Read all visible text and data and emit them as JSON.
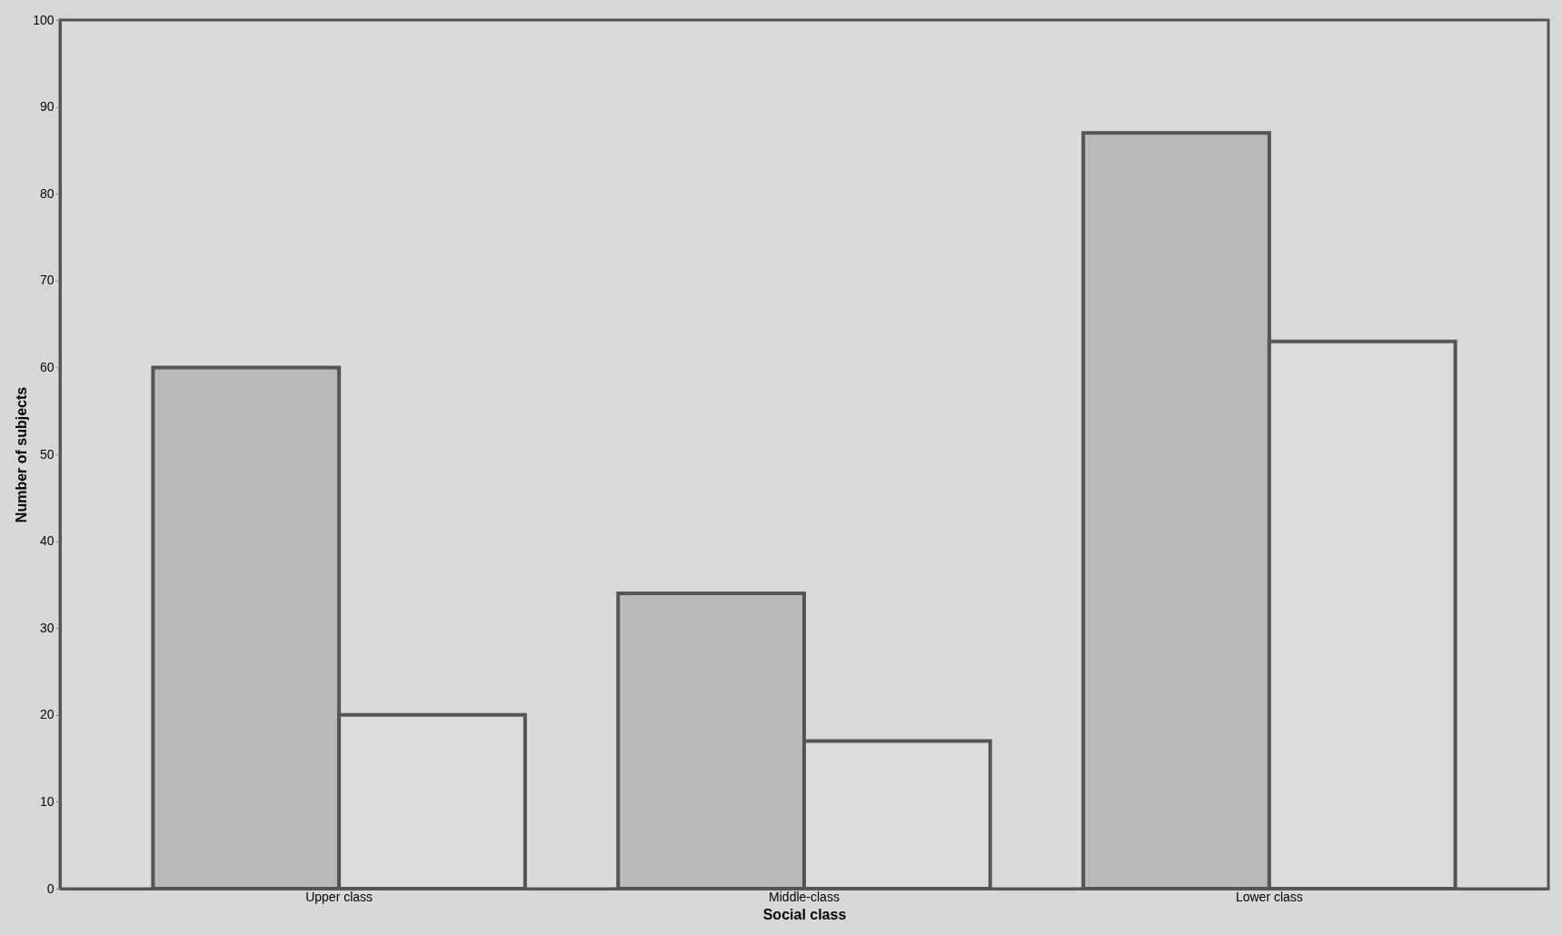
{
  "chart_data": {
    "type": "bar",
    "xlabel": "Social class",
    "ylabel": "Number of subjects",
    "categories": [
      "Upper class",
      "Middle-class",
      "Lower class"
    ],
    "series": [
      {
        "color": "#b9b9b9",
        "values": [
          60,
          34,
          87
        ]
      },
      {
        "color": "#dcdcdc",
        "values": [
          20,
          17,
          63
        ]
      }
    ],
    "ylim": [
      0,
      100
    ],
    "yticks": [
      0,
      10,
      20,
      30,
      40,
      50,
      60,
      70,
      80,
      90,
      100
    ],
    "grid": false
  }
}
